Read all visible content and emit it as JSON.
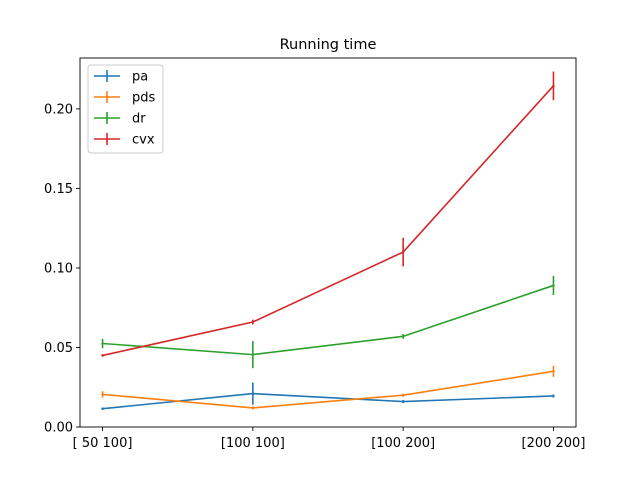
{
  "chart_data": {
    "type": "line",
    "title": "Running time",
    "xlabel": "",
    "ylabel": "",
    "categories": [
      "[ 50 100]",
      "[100 100]",
      "[100 200]",
      "[200 200]"
    ],
    "ylim": [
      0.0,
      0.232
    ],
    "yticks": [
      0.0,
      0.05,
      0.1,
      0.15,
      0.2
    ],
    "ytick_labels": [
      "0.00",
      "0.05",
      "0.10",
      "0.15",
      "0.20"
    ],
    "grid": false,
    "legend_position": "upper-left",
    "series": [
      {
        "name": "pa",
        "color": "#1f77b4",
        "values": [
          0.0115,
          0.021,
          0.016,
          0.0195
        ],
        "errors": [
          0.0008,
          0.007,
          0.001,
          0.001
        ]
      },
      {
        "name": "pds",
        "color": "#ff7f0e",
        "values": [
          0.0205,
          0.012,
          0.02,
          0.035
        ],
        "errors": [
          0.002,
          0.001,
          0.001,
          0.0035
        ]
      },
      {
        "name": "dr",
        "color": "#2ca02c",
        "values": [
          0.0525,
          0.0455,
          0.057,
          0.089
        ],
        "errors": [
          0.003,
          0.0085,
          0.0015,
          0.006
        ]
      },
      {
        "name": "cvx",
        "color": "#d62728",
        "values": [
          0.045,
          0.066,
          0.11,
          0.2145
        ],
        "errors": [
          0.0008,
          0.0015,
          0.009,
          0.009
        ]
      }
    ]
  }
}
